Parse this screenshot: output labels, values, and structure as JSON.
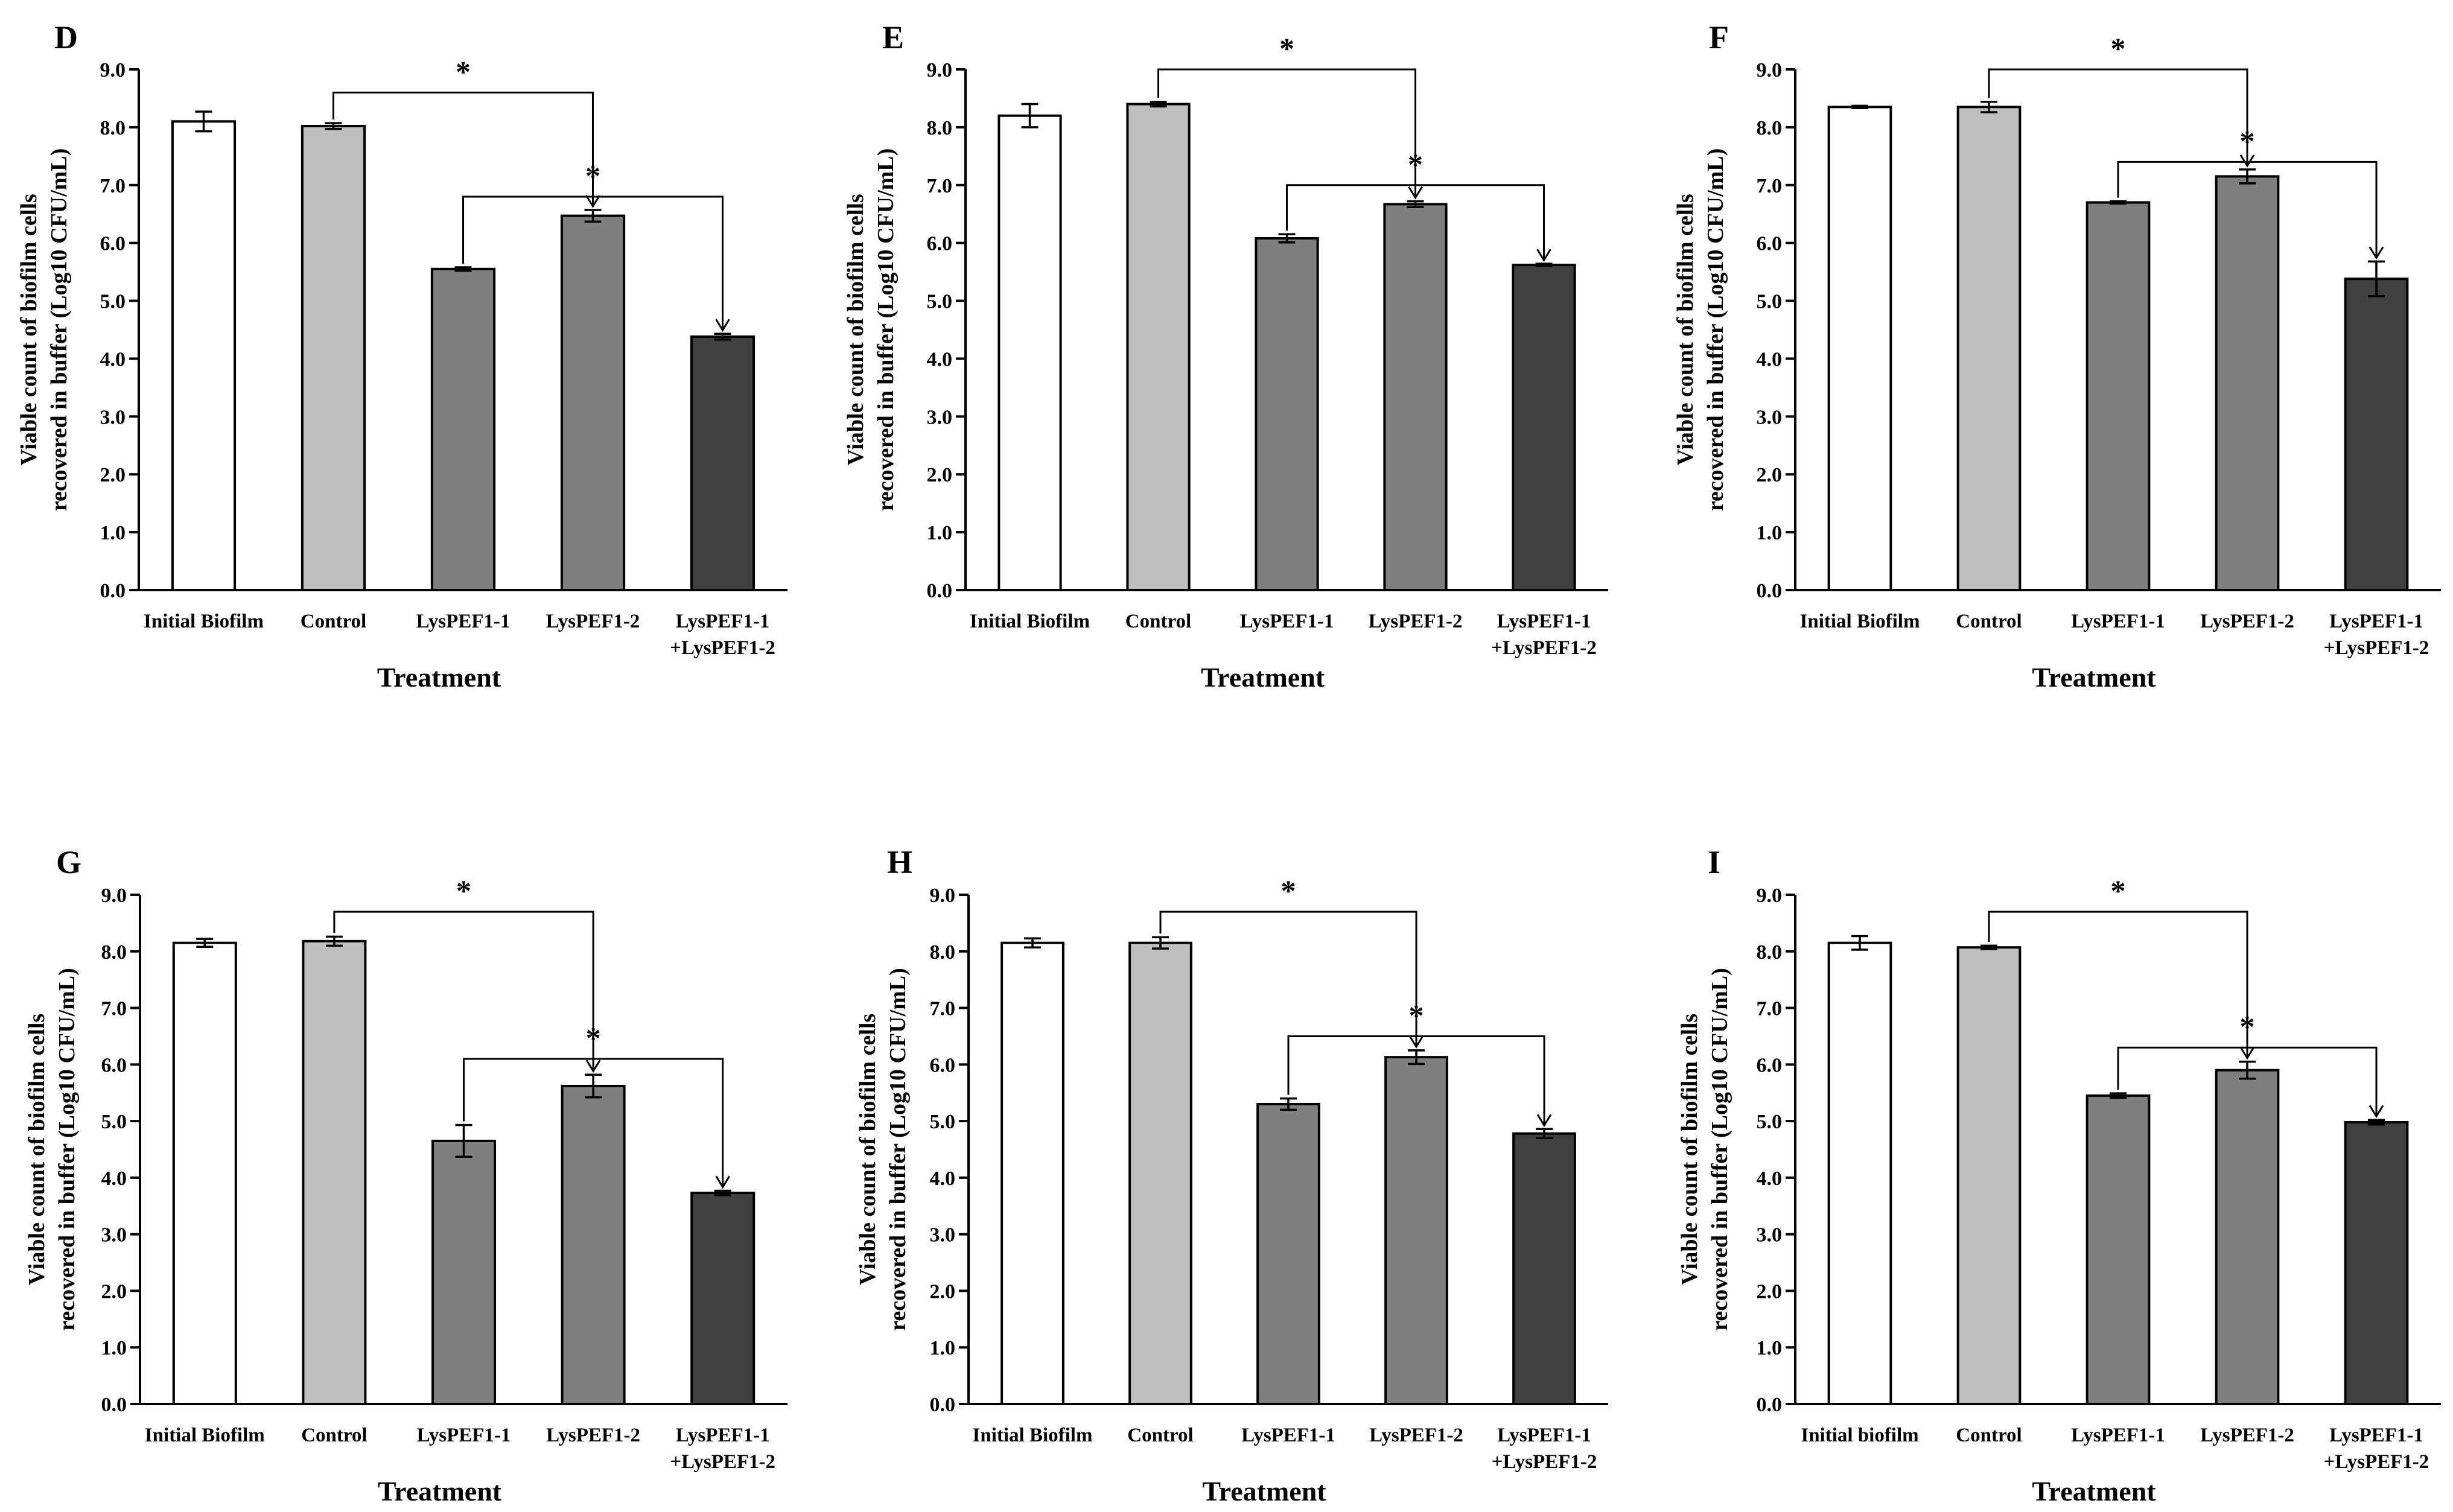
{
  "figure": {
    "panels": [
      "D",
      "E",
      "F",
      "G",
      "H",
      "I"
    ]
  },
  "chart_data": [
    {
      "type": "bar",
      "panel": "D",
      "categories": [
        "Initial Biofilm",
        "Control",
        "LysPEF1-1",
        "LysPEF1-2",
        [
          "LysPEF1-1",
          "+LysPEF1-2"
        ]
      ],
      "values": [
        8.1,
        8.02,
        5.55,
        6.47,
        4.38
      ],
      "errors": [
        0.17,
        0.05,
        0.03,
        0.1,
        0.05
      ],
      "colors": [
        "#ffffff",
        "#bfbfbf",
        "#7f7f7f",
        "#7f7f7f",
        "#404040"
      ],
      "ylim": [
        0,
        9
      ],
      "yticks": [
        "0.0",
        "1.0",
        "2.0",
        "3.0",
        "4.0",
        "5.0",
        "6.0",
        "7.0",
        "8.0",
        "9.0"
      ],
      "xlabel": "Treatment",
      "ylabel": [
        "Viable count of biofilm cells",
        "recovered in buffer (Log10 CFU/mL)"
      ],
      "annotations": [
        {
          "text": "*",
          "from": 1,
          "to": 3,
          "start": 8.02,
          "end": 6.47,
          "height": 8.6
        },
        {
          "text": "*",
          "from": 2,
          "to": 4,
          "start": 5.55,
          "end": 4.38,
          "height": 6.8
        }
      ]
    },
    {
      "type": "bar",
      "panel": "E",
      "categories": [
        "Initial Biofilm",
        "Control",
        "LysPEF1-1",
        "LysPEF1-2",
        [
          "LysPEF1-1",
          "+LysPEF1-2"
        ]
      ],
      "values": [
        8.2,
        8.4,
        6.08,
        6.67,
        5.62
      ],
      "errors": [
        0.2,
        0.04,
        0.07,
        0.05,
        0.02
      ],
      "colors": [
        "#ffffff",
        "#bfbfbf",
        "#7f7f7f",
        "#7f7f7f",
        "#404040"
      ],
      "ylim": [
        0,
        9
      ],
      "yticks": [
        "0.0",
        "1.0",
        "2.0",
        "3.0",
        "4.0",
        "5.0",
        "6.0",
        "7.0",
        "8.0",
        "9.0"
      ],
      "xlabel": "Treatment",
      "ylabel": [
        "Viable count of biofilm cells",
        "recovered in buffer (Log10 CFU/mL)"
      ],
      "annotations": [
        {
          "text": "*",
          "from": 1,
          "to": 3,
          "start": 8.4,
          "end": 6.67,
          "height": 9.0
        },
        {
          "text": "*",
          "from": 2,
          "to": 4,
          "start": 6.08,
          "end": 5.62,
          "height": 7.0
        }
      ]
    },
    {
      "type": "bar",
      "panel": "F",
      "categories": [
        "Initial Biofilm",
        "Control",
        "LysPEF1-1",
        "LysPEF1-2",
        [
          "LysPEF1-1",
          "+LysPEF1-2"
        ]
      ],
      "values": [
        8.35,
        8.35,
        6.7,
        7.15,
        5.38
      ],
      "errors": [
        0.02,
        0.09,
        0.02,
        0.12,
        0.3
      ],
      "colors": [
        "#ffffff",
        "#bfbfbf",
        "#7f7f7f",
        "#7f7f7f",
        "#404040"
      ],
      "ylim": [
        0,
        9
      ],
      "yticks": [
        "0.0",
        "1.0",
        "2.0",
        "3.0",
        "4.0",
        "5.0",
        "6.0",
        "7.0",
        "8.0",
        "9.0"
      ],
      "xlabel": "Treatment",
      "ylabel": [
        "Viable count of biofilm cells",
        "recovered in buffer (Log10 CFU/mL)"
      ],
      "annotations": [
        {
          "text": "*",
          "from": 1,
          "to": 3,
          "start": 8.35,
          "end": 7.15,
          "height": 9.0
        },
        {
          "text": "*",
          "from": 2,
          "to": 4,
          "start": 6.7,
          "end": 5.38,
          "height": 7.4
        }
      ]
    },
    {
      "type": "bar",
      "panel": "G",
      "categories": [
        "Initial Biofilm",
        "Control",
        "LysPEF1-1",
        "LysPEF1-2",
        [
          "LysPEF1-1",
          "+LysPEF1-2"
        ]
      ],
      "values": [
        8.15,
        8.18,
        4.65,
        5.62,
        3.73
      ],
      "errors": [
        0.07,
        0.08,
        0.28,
        0.2,
        0.04
      ],
      "colors": [
        "#ffffff",
        "#bfbfbf",
        "#7f7f7f",
        "#7f7f7f",
        "#404040"
      ],
      "ylim": [
        0,
        9
      ],
      "yticks": [
        "0.0",
        "1.0",
        "2.0",
        "3.0",
        "4.0",
        "5.0",
        "6.0",
        "7.0",
        "8.0",
        "9.0"
      ],
      "xlabel": "Treatment",
      "ylabel": [
        "Viable count of biofilm cells",
        "recovered in buffer (Log10 CFU/mL)"
      ],
      "annotations": [
        {
          "text": "*",
          "from": 1,
          "to": 3,
          "start": 8.18,
          "end": 5.62,
          "height": 8.7
        },
        {
          "text": "*",
          "from": 2,
          "to": 4,
          "start": 4.65,
          "end": 3.73,
          "height": 6.1
        }
      ]
    },
    {
      "type": "bar",
      "panel": "H",
      "categories": [
        "Initial Biofilm",
        "Control",
        "LysPEF1-1",
        "LysPEF1-2",
        [
          "LysPEF1-1",
          "+LysPEF1-2"
        ]
      ],
      "values": [
        8.15,
        8.15,
        5.3,
        6.13,
        4.78
      ],
      "errors": [
        0.08,
        0.1,
        0.1,
        0.12,
        0.08
      ],
      "colors": [
        "#ffffff",
        "#bfbfbf",
        "#7f7f7f",
        "#7f7f7f",
        "#404040"
      ],
      "ylim": [
        0,
        9
      ],
      "yticks": [
        "0.0",
        "1.0",
        "2.0",
        "3.0",
        "4.0",
        "5.0",
        "6.0",
        "7.0",
        "8.0",
        "9.0"
      ],
      "xlabel": "Treatment",
      "ylabel": [
        "Viable count of biofilm cells",
        "recovered in buffer (Log10 CFU/mL)"
      ],
      "annotations": [
        {
          "text": "*",
          "from": 1,
          "to": 3,
          "start": 8.15,
          "end": 6.13,
          "height": 8.7
        },
        {
          "text": "*",
          "from": 2,
          "to": 4,
          "start": 5.3,
          "end": 4.78,
          "height": 6.5
        }
      ]
    },
    {
      "type": "bar",
      "panel": "I",
      "categories": [
        "Initial biofilm",
        "Control",
        "LysPEF1-1",
        "LysPEF1-2",
        [
          "LysPEF1-1",
          "+LysPEF1-2"
        ]
      ],
      "values": [
        8.15,
        8.07,
        5.45,
        5.9,
        4.98
      ],
      "errors": [
        0.12,
        0.03,
        0.04,
        0.15,
        0.04
      ],
      "colors": [
        "#ffffff",
        "#bfbfbf",
        "#7f7f7f",
        "#7f7f7f",
        "#404040"
      ],
      "ylim": [
        0,
        9
      ],
      "yticks": [
        "0.0",
        "1.0",
        "2.0",
        "3.0",
        "4.0",
        "5.0",
        "6.0",
        "7.0",
        "8.0",
        "9.0"
      ],
      "xlabel": "Treatment",
      "ylabel": [
        "Viable count of biofilm cells",
        "recovered in buffer (Log10 CFU/mL)"
      ],
      "annotations": [
        {
          "text": "*",
          "from": 1,
          "to": 3,
          "start": 8.07,
          "end": 5.9,
          "height": 8.7
        },
        {
          "text": "*",
          "from": 2,
          "to": 4,
          "start": 5.45,
          "end": 4.98,
          "height": 6.3
        }
      ]
    }
  ]
}
